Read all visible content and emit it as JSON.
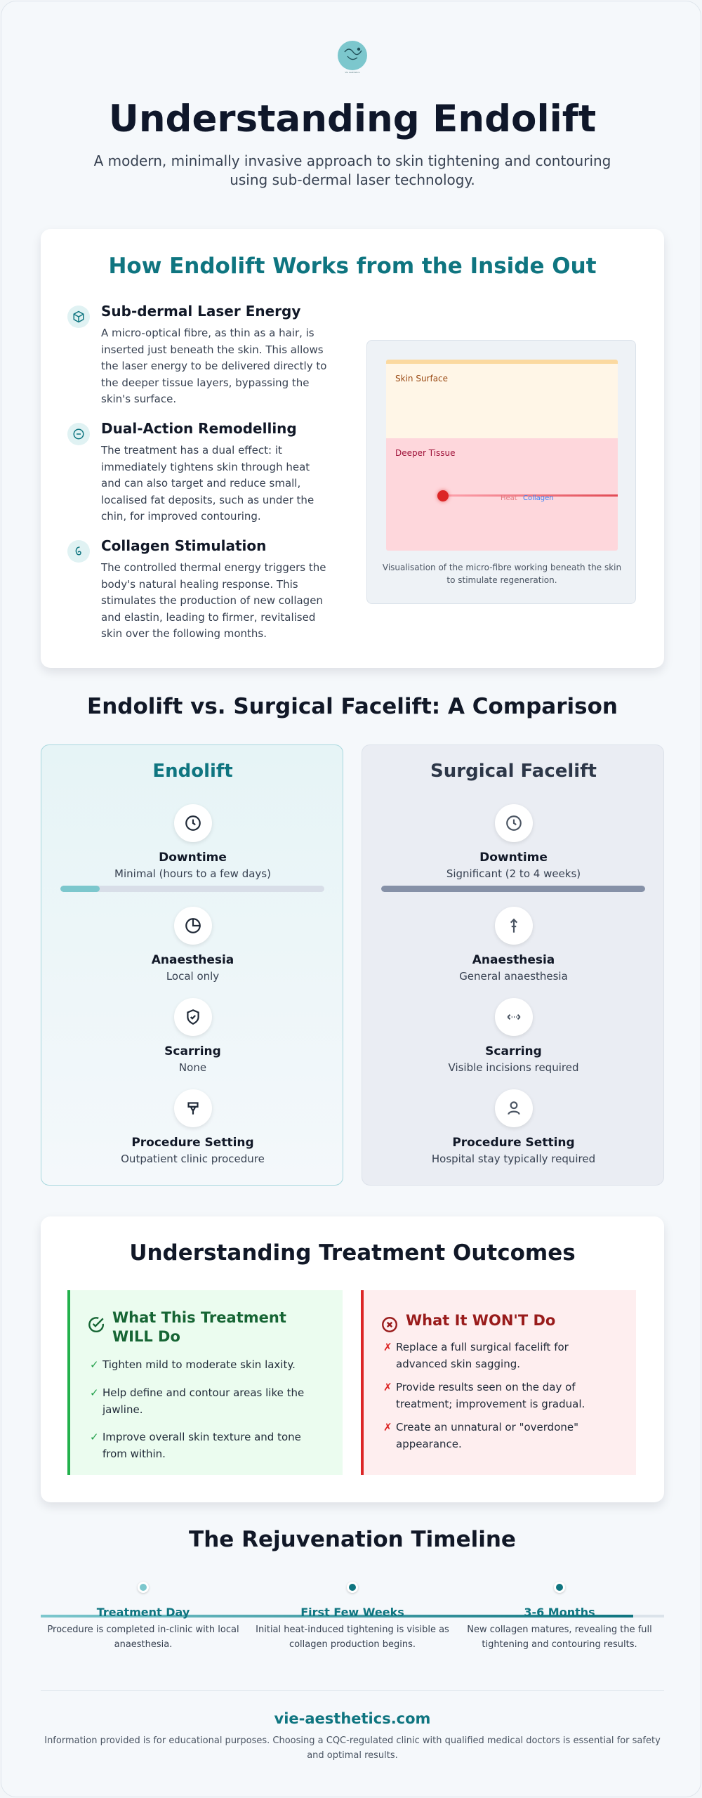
{
  "header": {
    "logo_text": "Vie Aesthetics",
    "title": "Understanding Endolift",
    "subtitle": "A modern, minimally invasive approach to skin tightening and contouring using sub-dermal laser technology."
  },
  "how_it_works": {
    "title": "How Endolift Works from the Inside Out",
    "features": [
      {
        "icon": "cube-icon",
        "title": "Sub-dermal Laser Energy",
        "text": "A micro-optical fibre, as thin as a hair, is inserted just beneath the skin. This allows the laser energy to be delivered directly to the deeper tissue layers, bypassing the skin's surface."
      },
      {
        "icon": "dual-action-icon",
        "title": "Dual-Action Remodelling",
        "text": "The treatment has a dual effect: it immediately tightens skin through heat and can also target and reduce small, localised fat deposits, such as under the chin, for improved contouring."
      },
      {
        "icon": "spiral-icon",
        "title": "Collagen Stimulation",
        "text": "The controlled thermal energy triggers the body's natural healing response. This stimulates the production of new collagen and elastin, leading to firmer, revitalised skin over the following months."
      }
    ],
    "visualisation": {
      "skin_label": "Skin Surface",
      "tissue_label": "Deeper Tissue",
      "heat_label": "Heat",
      "collagen_label": "Collagen",
      "caption": "Visualisation of the micro-fibre working beneath the skin to stimulate regeneration."
    }
  },
  "comparison": {
    "title": "Endolift vs. Surgical Facelift: A Comparison",
    "endolift": {
      "title": "Endolift",
      "items": [
        {
          "icon": "clock-icon",
          "label": "Downtime",
          "value": "Minimal (hours to a few days)",
          "bar_level": 0.15
        },
        {
          "icon": "pie-icon",
          "label": "Anaesthesia",
          "value": "Local only"
        },
        {
          "icon": "shield-check-icon",
          "label": "Scarring",
          "value": "None"
        },
        {
          "icon": "chair-icon",
          "label": "Procedure Setting",
          "value": "Outpatient clinic procedure"
        }
      ]
    },
    "surgical": {
      "title": "Surgical Facelift",
      "items": [
        {
          "icon": "clock-icon",
          "label": "Downtime",
          "value": "Significant (2 to 4 weeks)",
          "bar_level": 1.0
        },
        {
          "icon": "syringe-icon",
          "label": "Anaesthesia",
          "value": "General anaesthesia"
        },
        {
          "icon": "incision-icon",
          "label": "Scarring",
          "value": "Visible incisions required"
        },
        {
          "icon": "person-icon",
          "label": "Procedure Setting",
          "value": "Hospital stay typically required"
        }
      ]
    },
    "colors": {
      "endolift_bar": "#7cc7cd",
      "surgical_bar": "#8691a7"
    }
  },
  "outcomes": {
    "title": "Understanding Treatment Outcomes",
    "will": {
      "title": "What This Treatment WILL Do",
      "items": [
        "Tighten mild to moderate skin laxity.",
        "Help define and contour areas like the jawline.",
        "Improve overall skin texture and tone from within."
      ]
    },
    "wont": {
      "title": "What It WON'T Do",
      "items": [
        "Replace a full surgical facelift for advanced skin sagging.",
        "Provide results seen on the day of treatment; improvement is gradual.",
        "Create an unnatural or \"overdone\" appearance."
      ]
    }
  },
  "timeline": {
    "title": "The Rejuvenation Timeline",
    "steps": [
      {
        "label": "Treatment Day",
        "desc": "Procedure is completed in-clinic with local anaesthesia.",
        "color": "#7cc7cd"
      },
      {
        "label": "First Few Weeks",
        "desc": "Initial heat-induced tightening is visible as collagen production begins.",
        "color": "#0f7580"
      },
      {
        "label": "3-6 Months",
        "desc": "New collagen matures, revealing the full tightening and contouring results.",
        "color": "#0f7580"
      }
    ]
  },
  "footer": {
    "site": "vie-aesthetics.com",
    "note": "Information provided is for educational purposes. Choosing a CQC-regulated clinic with qualified medical doctors is essential for safety and optimal results."
  }
}
